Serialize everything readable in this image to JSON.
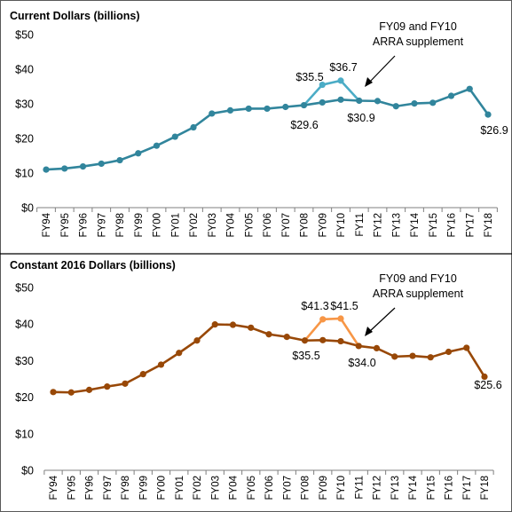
{
  "chart_data": [
    {
      "type": "line",
      "title": "Current Dollars (billions)",
      "categories": [
        "FY94",
        "FY95",
        "FY96",
        "FY97",
        "FY98",
        "FY99",
        "FY00",
        "FY01",
        "FY02",
        "FY03",
        "FY04",
        "FY05",
        "FY06",
        "FY07",
        "FY08",
        "FY09",
        "FY10",
        "FY11",
        "FY12",
        "FY13",
        "FY14",
        "FY15",
        "FY16",
        "FY17",
        "FY18"
      ],
      "ylim": [
        0,
        50
      ],
      "yticks": [
        "$0",
        "$10",
        "$20",
        "$30",
        "$40",
        "$50"
      ],
      "grid": false,
      "color": "#31859c",
      "highlight_color": "#4bacc6",
      "series": [
        {
          "values": [
            11.0,
            11.3,
            11.9,
            12.7,
            13.7,
            15.7,
            17.9,
            20.5,
            23.2,
            27.2,
            28.1,
            28.6,
            28.6,
            29.1,
            29.6,
            30.4,
            31.2,
            30.9,
            30.8,
            29.3,
            30.1,
            30.3,
            32.3,
            34.3,
            26.9
          ]
        },
        {
          "values": [
            null,
            null,
            null,
            null,
            null,
            null,
            null,
            null,
            null,
            null,
            null,
            null,
            null,
            null,
            29.6,
            35.5,
            36.7,
            30.9,
            null,
            null,
            null,
            null,
            null,
            null,
            null
          ]
        }
      ],
      "data_labels": [
        "$35.5",
        "$36.7",
        "$29.6",
        "$30.9",
        "$26.9"
      ],
      "annotation": [
        "FY09 and FY10",
        "ARRA supplement"
      ]
    },
    {
      "type": "line",
      "title": "Constant 2016 Dollars (billions)",
      "categories": [
        "FY94",
        "FY95",
        "FY96",
        "FY97",
        "FY98",
        "FY99",
        "FY00",
        "FY01",
        "FY02",
        "FY03",
        "FY04",
        "FY05",
        "FY06",
        "FY07",
        "FY08",
        "FY09",
        "FY10",
        "FY11",
        "FY12",
        "FY13",
        "FY14",
        "FY15",
        "FY16",
        "FY17",
        "FY18"
      ],
      "ylim": [
        0,
        50
      ],
      "yticks": [
        "$0",
        "$10",
        "$20",
        "$30",
        "$40",
        "$50"
      ],
      "grid": false,
      "color": "#984807",
      "highlight_color": "#f79646",
      "series": [
        {
          "values": [
            21.4,
            21.3,
            22.0,
            22.9,
            23.7,
            26.3,
            28.9,
            32.1,
            35.5,
            39.9,
            39.8,
            39.0,
            37.2,
            36.5,
            35.5,
            35.6,
            35.3,
            34.0,
            33.4,
            31.1,
            31.3,
            30.9,
            32.4,
            33.5,
            25.6
          ]
        },
        {
          "values": [
            null,
            null,
            null,
            null,
            null,
            null,
            null,
            null,
            null,
            null,
            null,
            null,
            null,
            null,
            35.5,
            41.3,
            41.5,
            34.0,
            null,
            null,
            null,
            null,
            null,
            null,
            null
          ]
        }
      ],
      "data_labels": [
        "$41.3",
        "$41.5",
        "$35.5",
        "$34.0",
        "$25.6"
      ],
      "annotation": [
        "FY09 and FY10",
        "ARRA supplement"
      ]
    }
  ]
}
